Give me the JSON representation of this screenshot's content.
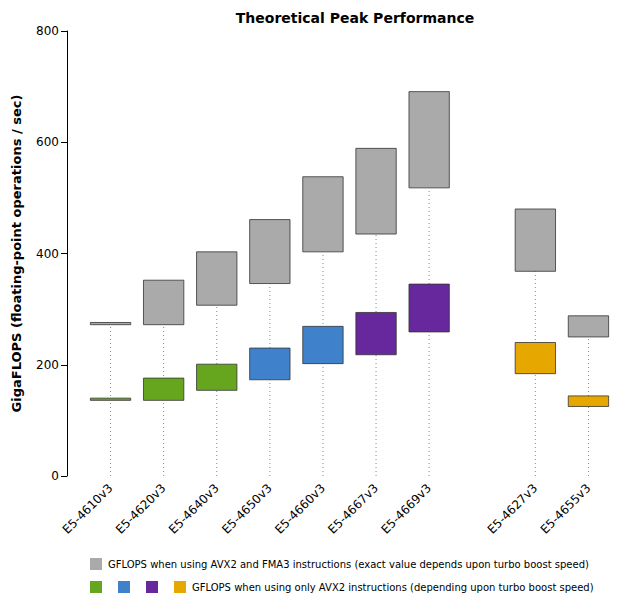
{
  "chart_data": {
    "type": "floating_bar",
    "title": "Theoretical Peak Performance",
    "y_label": "GigaFLOPS (floating-point operations / sec)",
    "categories": [
      "E5-4610v3",
      "E5-4620v3",
      "E5-4640v3",
      "E5-4650v3",
      "E5-4660v3",
      "E5-4667v3",
      "E5-4669v3",
      null,
      "E5-4627v3",
      "E5-4655v3"
    ],
    "series": [
      {
        "name": "GFLOPS when using AVX2 and FMA3 instructions (exact value depends upon turbo boost speed)",
        "color": "#aaaaaa",
        "low": [
          272,
          272,
          307,
          346,
          403,
          435,
          518,
          null,
          368,
          250
        ],
        "high": [
          276,
          352,
          403,
          461,
          538,
          589,
          691,
          null,
          480,
          288
        ]
      },
      {
        "name": "GFLOPS when using only AVX2 instructions (depending upon turbo boost speed)",
        "colors": [
          "#66a61e",
          "#66a61e",
          "#66a61e",
          "#3f82cb",
          "#3f82cb",
          "#66289c",
          "#66289c",
          null,
          "#e6a700",
          "#e6a700"
        ],
        "low": [
          136,
          136,
          154,
          173,
          202,
          218,
          259,
          null,
          184,
          125
        ],
        "high": [
          140,
          176,
          201,
          230,
          269,
          294,
          345,
          null,
          240,
          144
        ]
      }
    ],
    "ylim": [
      0,
      800
    ],
    "yticks": [
      0,
      200,
      400,
      600,
      800
    ],
    "grid": false,
    "legend": "bottom"
  }
}
